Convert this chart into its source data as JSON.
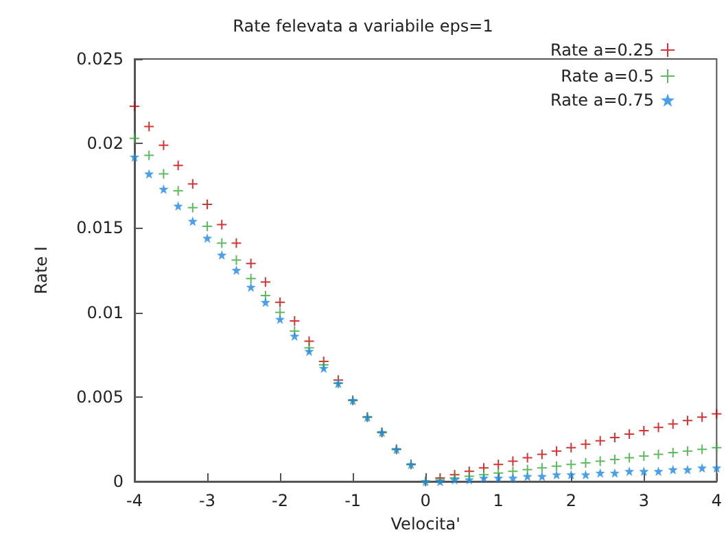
{
  "chart_data": {
    "type": "scatter",
    "title": "Rate felevata a variabile eps=1",
    "xlabel": "Velocita'",
    "ylabel": "Rate I",
    "x": [
      -4,
      -3.8,
      -3.6,
      -3.4,
      -3.2,
      -3,
      -2.8,
      -2.6,
      -2.4,
      -2.2,
      -2,
      -1.8,
      -1.6,
      -1.4,
      -1.2,
      -1,
      -0.8,
      -0.6,
      -0.4,
      -0.2,
      0,
      0.2,
      0.4,
      0.6,
      0.8,
      1,
      1.2,
      1.4,
      1.6,
      1.8,
      2,
      2.2,
      2.4,
      2.6,
      2.8,
      3,
      3.2,
      3.4,
      3.6,
      3.8,
      4
    ],
    "series": [
      {
        "name": "Rate a=0.25",
        "color": "#cc0000",
        "marker": "cross",
        "values": [
          0.0222,
          0.021,
          0.0199,
          0.0187,
          0.0176,
          0.0164,
          0.0152,
          0.0141,
          0.0129,
          0.0118,
          0.0106,
          0.0095,
          0.0083,
          0.0071,
          0.006,
          0.0048,
          0.0038,
          0.0029,
          0.0019,
          0.001,
          0,
          0.0002,
          0.0004,
          0.0006,
          0.0008,
          0.001,
          0.0012,
          0.0014,
          0.0016,
          0.0018,
          0.002,
          0.0022,
          0.0024,
          0.0026,
          0.0028,
          0.003,
          0.0032,
          0.0034,
          0.0036,
          0.0038,
          0.004
        ]
      },
      {
        "name": "Rate a=0.5",
        "color": "#33aa33",
        "marker": "cross",
        "values": [
          0.0203,
          0.0193,
          0.0182,
          0.0172,
          0.0162,
          0.0151,
          0.0141,
          0.0131,
          0.012,
          0.011,
          0.01,
          0.0089,
          0.0079,
          0.0069,
          0.0058,
          0.0048,
          0.0038,
          0.0029,
          0.0019,
          0.001,
          0,
          0.0001,
          0.0002,
          0.0003,
          0.0004,
          0.0005,
          0.0006,
          0.0007,
          0.0008,
          0.0009,
          0.001,
          0.0011,
          0.0012,
          0.0013,
          0.0014,
          0.0015,
          0.0016,
          0.0017,
          0.0018,
          0.0019,
          0.002
        ]
      },
      {
        "name": "Rate a=0.75",
        "color": "#1e88e5",
        "marker": "star",
        "values": [
          0.0192,
          0.0182,
          0.0173,
          0.0163,
          0.0154,
          0.0144,
          0.0134,
          0.0125,
          0.0115,
          0.0106,
          0.0096,
          0.0086,
          0.0077,
          0.0067,
          0.0058,
          0.0048,
          0.0038,
          0.0029,
          0.0019,
          0.001,
          0,
          0,
          0.0001,
          0.0001,
          0.0002,
          0.0002,
          0.0002,
          0.0003,
          0.0003,
          0.0004,
          0.0004,
          0.0004,
          0.0005,
          0.0005,
          0.0006,
          0.0006,
          0.0006,
          0.0007,
          0.0007,
          0.0008,
          0.0008
        ]
      }
    ],
    "xlim": [
      -4,
      4
    ],
    "xticks": [
      -4,
      -3,
      -2,
      -1,
      0,
      1,
      2,
      3,
      4
    ],
    "ylim": [
      0,
      0.025
    ],
    "yticks": [
      0,
      0.005,
      0.01,
      0.015,
      0.02,
      0.025
    ],
    "grid": false,
    "legend": "top right"
  }
}
